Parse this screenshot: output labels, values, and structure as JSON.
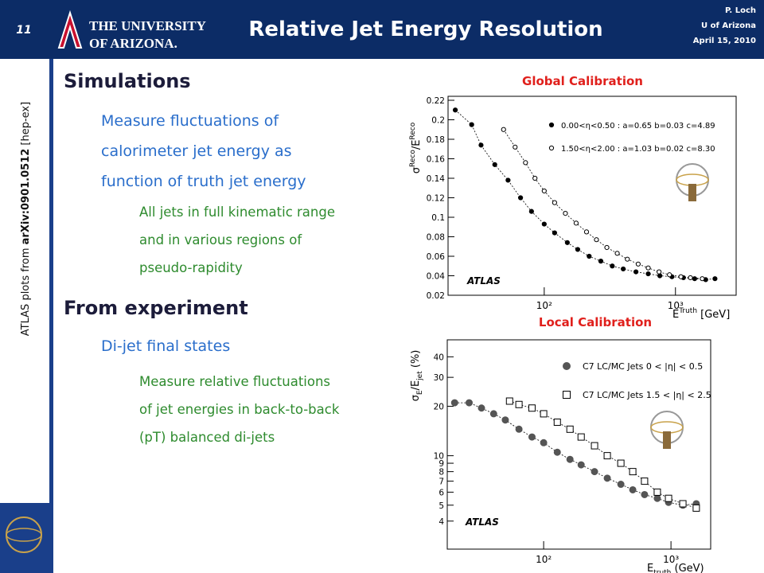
{
  "header": {
    "page_number": "11",
    "university": [
      "THE UNIVERSITY",
      "OF ARIZONA."
    ],
    "title": "Relative Jet Energy Resolution",
    "author": "P. Loch",
    "affiliation": "U of Arizona",
    "date": "April 15, 2010"
  },
  "sidebar": [
    "ATLAS plots from ",
    "arXiv:0901.0512",
    " [hep-ex]"
  ],
  "body": {
    "sections": [
      {
        "heading": "Simulations",
        "points": [
          {
            "text": [
              "Measure fluctuations of",
              "calorimeter jet energy as",
              "function of truth jet energy"
            ],
            "subpoints": [
              "All jets in full kinematic range",
              "and in various regions of",
              "pseudo-rapidity"
            ]
          }
        ]
      },
      {
        "heading": "From experiment",
        "points": [
          {
            "text": [
              "Di-jet final states"
            ],
            "subpoints": [
              "Measure relative fluctuations",
              "of jet energies in back-to-back",
              "(pT) balanced di-jets"
            ]
          }
        ]
      }
    ]
  },
  "chart_data": [
    {
      "type": "scatter",
      "caption": "Global Calibration",
      "annotation": "ATLAS",
      "x_label": [
        "E",
        "Truth",
        " [GeV]"
      ],
      "y_label": [
        "σ",
        "Reco",
        "/E",
        "Reco"
      ],
      "xscale": "log",
      "yscale": "linear",
      "xlim": [
        18.5,
        2900
      ],
      "ylim": [
        0.02,
        0.22
      ],
      "xticks": [
        {
          "value": 100,
          "label": "10²"
        },
        {
          "value": 1000,
          "label": "10³"
        }
      ],
      "yticks": [
        0.02,
        0.04,
        0.06,
        0.08,
        0.1,
        0.12,
        0.14,
        0.16,
        0.18,
        0.2,
        0.22
      ],
      "series": [
        {
          "name": "0.00<η<0.50 : a=0.65 b=0.03 c=4.89",
          "color": "#000000",
          "marker": "filled-circle",
          "x": [
            21,
            28,
            33,
            42,
            53,
            66,
            80,
            100,
            120,
            150,
            180,
            220,
            270,
            330,
            400,
            500,
            620,
            760,
            940,
            1150,
            1400,
            1700,
            2000
          ],
          "values": [
            0.21,
            0.195,
            0.174,
            0.154,
            0.138,
            0.12,
            0.106,
            0.093,
            0.084,
            0.074,
            0.067,
            0.06,
            0.055,
            0.05,
            0.047,
            0.044,
            0.042,
            0.04,
            0.039,
            0.038,
            0.037,
            0.036,
            0.037
          ]
        },
        {
          "name": "1.50<η<2.00 : a=1.03 b=0.02 c=8.30",
          "color": "#000000",
          "marker": "open-circle",
          "x": [
            49,
            60,
            72,
            85,
            100,
            120,
            145,
            175,
            210,
            250,
            300,
            360,
            430,
            520,
            620,
            750,
            900,
            1100,
            1300,
            1600
          ],
          "values": [
            0.19,
            0.172,
            0.156,
            0.14,
            0.127,
            0.115,
            0.104,
            0.094,
            0.085,
            0.077,
            0.069,
            0.063,
            0.057,
            0.052,
            0.048,
            0.044,
            0.041,
            0.039,
            0.038,
            0.037
          ]
        }
      ]
    },
    {
      "type": "scatter",
      "caption": "Local Calibration",
      "annotation": "ATLAS",
      "x_label": [
        "E",
        "truth",
        " (GeV)"
      ],
      "y_label": [
        "σ",
        "E",
        "/E",
        "jet",
        " (%)"
      ],
      "xscale": "log",
      "yscale": "log",
      "xlim": [
        17.5,
        2050
      ],
      "ylim": [
        2.7,
        48
      ],
      "xticks": [
        {
          "value": 100,
          "label": "10²"
        },
        {
          "value": 1000,
          "label": "10³"
        }
      ],
      "yticks": [
        4,
        5,
        6,
        7,
        8,
        9,
        10,
        20,
        30,
        40
      ],
      "series": [
        {
          "name": "C7 LC/MC Jets 0 < |η| < 0.5",
          "color": "#555555",
          "marker": "filled-circle",
          "x": [
            20,
            26,
            32.5,
            40.5,
            50,
            64,
            81,
            100,
            128,
            161,
            197,
            251,
            316,
            404,
            501,
            620,
            781,
            957,
            1240,
            1580
          ],
          "values": [
            21,
            21,
            19.5,
            18,
            16.5,
            14.5,
            13,
            12,
            10.5,
            9.5,
            8.8,
            8,
            7.3,
            6.7,
            6.2,
            5.8,
            5.5,
            5.2,
            5.0,
            5.1
          ]
        },
        {
          "name": "C7 LC/MC Jets 1.5 < |η| < 2.5",
          "color": "#000000",
          "marker": "open-square",
          "x": [
            54,
            64,
            81,
            100,
            128,
            161,
            197,
            251,
            316,
            404,
            501,
            620,
            781,
            957,
            1240,
            1580
          ],
          "values": [
            21.5,
            20.5,
            19.5,
            18,
            16,
            14.5,
            13,
            11.5,
            10,
            9,
            8,
            7,
            6,
            5.5,
            5.1,
            4.8
          ]
        }
      ]
    }
  ]
}
